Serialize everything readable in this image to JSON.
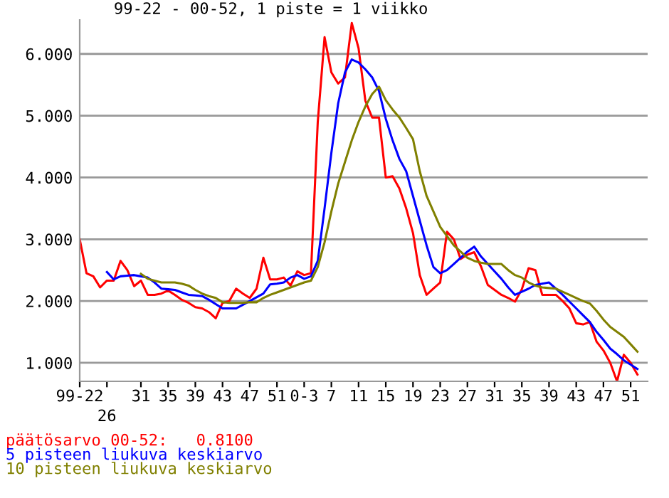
{
  "chart_data": {
    "type": "line",
    "title": "99-22 - 00-52, 1 piste = 1 viikko",
    "categories": [
      "99-22",
      null,
      null,
      null,
      "26",
      null,
      null,
      null,
      null,
      "31",
      null,
      null,
      null,
      "35",
      null,
      null,
      null,
      "39",
      null,
      null,
      null,
      "43",
      null,
      null,
      null,
      "47",
      null,
      null,
      null,
      "51",
      null,
      null,
      null,
      "0-3",
      null,
      null,
      null,
      "7",
      null,
      null,
      null,
      "11",
      null,
      null,
      null,
      "15",
      null,
      null,
      null,
      "19",
      null,
      null,
      null,
      "23",
      null,
      null,
      null,
      "27",
      null,
      null,
      null,
      "31",
      null,
      null,
      null,
      "35",
      null,
      null,
      null,
      "39",
      null,
      null,
      null,
      "43",
      null,
      null,
      null,
      "47",
      null,
      null,
      null,
      "51",
      null
    ],
    "ylim": [
      0.7,
      6.55
    ],
    "yticks": [
      {
        "value": 1,
        "label": "1.000"
      },
      {
        "value": 2,
        "label": "2.000"
      },
      {
        "value": 3,
        "label": "3.000"
      },
      {
        "value": 4,
        "label": "4.000"
      },
      {
        "value": 5,
        "label": "5.000"
      },
      {
        "value": 6,
        "label": "6.000"
      }
    ],
    "grid": "y",
    "legend": "bottom left",
    "marker": "none",
    "series": [
      {
        "name": "päätösarvo 00-52:   0.8100",
        "color": "#ff0000",
        "values": [
          3.0,
          2.45,
          2.4,
          2.22,
          2.33,
          2.33,
          2.65,
          2.5,
          2.24,
          2.33,
          2.1,
          2.1,
          2.12,
          2.17,
          2.1,
          2.02,
          1.97,
          1.9,
          1.88,
          1.82,
          1.72,
          1.97,
          2.0,
          2.2,
          2.12,
          2.05,
          2.2,
          2.7,
          2.35,
          2.35,
          2.38,
          2.25,
          2.48,
          2.42,
          2.45,
          4.9,
          6.27,
          5.7,
          5.52,
          5.62,
          6.5,
          6.09,
          5.24,
          4.97,
          4.97,
          4.0,
          4.02,
          3.82,
          3.5,
          3.1,
          2.42,
          2.1,
          2.2,
          2.3,
          3.12,
          3.0,
          2.68,
          2.75,
          2.79,
          2.56,
          2.26,
          2.18,
          2.1,
          2.05,
          1.99,
          2.19,
          2.53,
          2.5,
          2.1,
          2.1,
          2.1,
          2.0,
          1.88,
          1.64,
          1.62,
          1.66,
          1.34,
          1.2,
          1.0,
          0.7,
          1.13,
          1.0,
          0.81
        ]
      },
      {
        "name": "5 pisteen liukuva keskiarvo",
        "color": "#0000ff",
        "values": [
          null,
          null,
          null,
          null,
          2.47,
          2.35,
          2.4,
          2.41,
          2.42,
          2.4,
          2.38,
          2.3,
          2.2,
          2.19,
          2.18,
          2.14,
          2.1,
          2.09,
          2.08,
          2.02,
          1.95,
          1.88,
          1.88,
          1.88,
          1.94,
          2.0,
          2.06,
          2.12,
          2.27,
          2.28,
          2.3,
          2.38,
          2.42,
          2.36,
          2.4,
          2.65,
          3.5,
          4.4,
          5.2,
          5.7,
          5.91,
          5.86,
          5.75,
          5.62,
          5.4,
          4.95,
          4.6,
          4.3,
          4.1,
          3.7,
          3.3,
          2.9,
          2.55,
          2.45,
          2.5,
          2.6,
          2.7,
          2.8,
          2.88,
          2.72,
          2.6,
          2.48,
          2.36,
          2.22,
          2.1,
          2.15,
          2.2,
          2.26,
          2.28,
          2.3,
          2.2,
          2.1,
          1.99,
          1.88,
          1.77,
          1.66,
          1.5,
          1.37,
          1.23,
          1.14,
          1.04,
          0.97,
          0.9
        ]
      },
      {
        "name": "10 pisteen liukuva keskiarvo",
        "color": "#808000",
        "values": [
          null,
          null,
          null,
          null,
          null,
          null,
          null,
          null,
          null,
          2.44,
          2.36,
          2.33,
          2.3,
          2.3,
          2.3,
          2.28,
          2.25,
          2.18,
          2.12,
          2.08,
          2.05,
          1.98,
          1.97,
          1.97,
          1.97,
          1.98,
          1.98,
          2.05,
          2.1,
          2.14,
          2.18,
          2.22,
          2.26,
          2.3,
          2.33,
          2.55,
          2.95,
          3.45,
          3.9,
          4.25,
          4.6,
          4.9,
          5.15,
          5.35,
          5.47,
          5.25,
          5.1,
          4.97,
          4.8,
          4.62,
          4.1,
          3.7,
          3.45,
          3.2,
          3.05,
          2.9,
          2.8,
          2.7,
          2.65,
          2.62,
          2.6,
          2.6,
          2.6,
          2.5,
          2.42,
          2.38,
          2.3,
          2.25,
          2.22,
          2.21,
          2.2,
          2.15,
          2.1,
          2.05,
          2.0,
          1.96,
          1.84,
          1.7,
          1.58,
          1.5,
          1.42,
          1.3,
          1.18
        ]
      }
    ]
  }
}
